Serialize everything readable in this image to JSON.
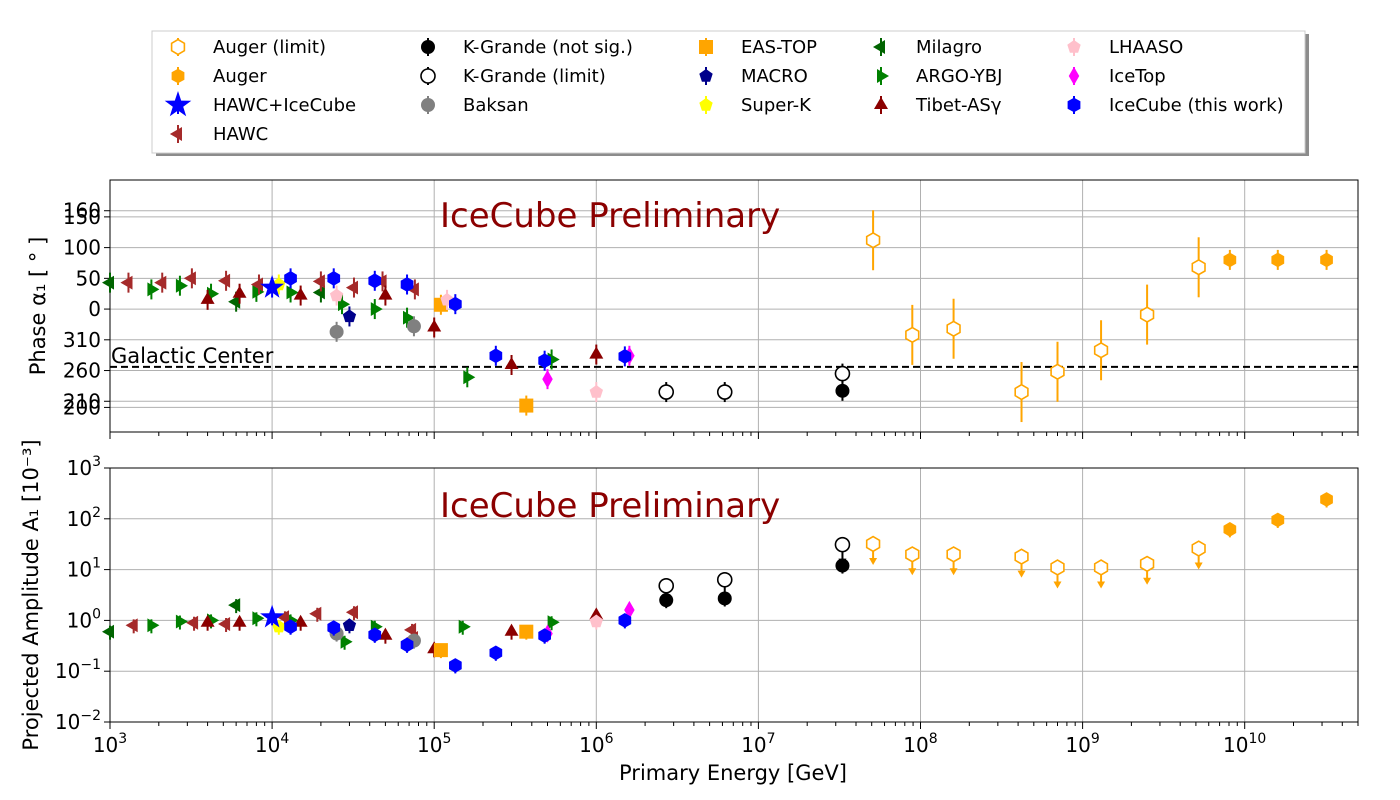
{
  "chart_data": [
    {
      "type": "scatter",
      "panel": "phase",
      "ylabel": "Phase α₁ [ ° ]",
      "xlabel": "",
      "xscale": "log",
      "xlim": [
        1000,
        50000000000
      ],
      "phase_ticks": [
        200,
        150,
        100,
        50,
        0,
        310,
        260,
        210,
        160
      ],
      "watermark": "IceCube Preliminary",
      "reference_line": {
        "label": "Galactic Center",
        "value": 266
      },
      "series": [
        {
          "name": "Milagro",
          "points": [
            [
              1000,
              43
            ],
            [
              6000,
              12
            ],
            [
              20000,
              27
            ]
          ]
        },
        {
          "name": "ARGO-YBJ",
          "points": [
            [
              1800,
              32
            ],
            [
              2700,
              38
            ],
            [
              4200,
              25
            ],
            [
              8000,
              28
            ],
            [
              13000,
              27
            ],
            [
              27000,
              8
            ],
            [
              43000,
              0
            ],
            [
              68000,
              -14
            ],
            [
              160000,
              249
            ],
            [
              530000,
              278
            ]
          ]
        },
        {
          "name": "HAWC",
          "points": [
            [
              1300,
              43
            ],
            [
              2100,
              43
            ],
            [
              3200,
              50
            ],
            [
              5200,
              46
            ],
            [
              8300,
              40
            ],
            [
              20000,
              45
            ],
            [
              32000,
              35
            ],
            [
              48000,
              45
            ],
            [
              76000,
              32
            ]
          ]
        },
        {
          "name": "Tibet-ASγ",
          "points": [
            [
              4000,
              15
            ],
            [
              6300,
              25
            ],
            [
              15000,
              22
            ],
            [
              50000,
              22
            ],
            [
              100000,
              -30
            ],
            [
              300000,
              269
            ],
            [
              1000000,
              286
            ]
          ]
        },
        {
          "name": "Baksan",
          "points": [
            [
              25000,
              -37
            ],
            [
              75000,
              -28
            ]
          ]
        },
        {
          "name": "MACRO",
          "points": [
            [
              30000,
              -12
            ]
          ]
        },
        {
          "name": "Super-K",
          "points": [
            [
              11000,
              40
            ]
          ]
        },
        {
          "name": "EAS-TOP",
          "points": [
            [
              110000,
              7
            ],
            [
              370000,
              203
            ]
          ]
        },
        {
          "name": "LHAASO",
          "points": [
            [
              25000,
              22
            ],
            [
              120000,
              15
            ],
            [
              1000000,
              225
            ]
          ]
        },
        {
          "name": "IceTop",
          "points": [
            [
              500000,
              246
            ],
            [
              1600000,
              284
            ]
          ]
        },
        {
          "name": "HAWC+IceCube",
          "points": [
            [
              10000,
              35
            ]
          ]
        },
        {
          "name": "IceCube (this work)",
          "points": [
            [
              13000,
              50
            ],
            [
              24000,
              50
            ],
            [
              43000,
              46
            ],
            [
              68000,
              40
            ],
            [
              135000,
              8
            ],
            [
              240000,
              284
            ],
            [
              480000,
              276
            ],
            [
              1500000,
              283
            ]
          ]
        },
        {
          "name": "K-Grande (limit)",
          "points": [
            [
              2700000,
              225
            ],
            [
              6200000,
              225
            ],
            [
              33000000,
              255
            ]
          ]
        },
        {
          "name": "K-Grande (not sig.)",
          "points": [
            [
              33000000,
              227
            ]
          ]
        },
        {
          "name": "Auger (limit)",
          "points": [
            [
              51000000,
              112
            ],
            [
              89000000,
              -42
            ],
            [
              160000000,
              -32
            ],
            [
              420000000,
              225
            ],
            [
              700000000,
              258
            ],
            [
              1300000000,
              -67
            ],
            [
              2500000000,
              -9
            ],
            [
              5200000000,
              68
            ]
          ]
        },
        {
          "name": "Auger",
          "points": [
            [
              8100000000,
              80
            ],
            [
              16000000000,
              80
            ],
            [
              32000000000,
              80
            ]
          ]
        }
      ]
    },
    {
      "type": "scatter",
      "panel": "amplitude",
      "ylabel": "Projected Amplitude A₁ [10⁻³]",
      "xlabel": "Primary Energy [GeV]",
      "xscale": "log",
      "yscale": "log",
      "xlim": [
        1000,
        50000000000
      ],
      "ylim": [
        0.01,
        1000
      ],
      "watermark": "IceCube Preliminary",
      "x_ticks": [
        {
          "base": "10",
          "exp": "3"
        },
        {
          "base": "10",
          "exp": "4"
        },
        {
          "base": "10",
          "exp": "5"
        },
        {
          "base": "10",
          "exp": "6"
        },
        {
          "base": "10",
          "exp": "7"
        },
        {
          "base": "10",
          "exp": "8"
        },
        {
          "base": "10",
          "exp": "9"
        },
        {
          "base": "10",
          "exp": "10"
        }
      ],
      "y_ticks": [
        {
          "base": "10",
          "exp": "−2"
        },
        {
          "base": "10",
          "exp": "−1"
        },
        {
          "base": "10",
          "exp": "0"
        },
        {
          "base": "10",
          "exp": "1"
        },
        {
          "base": "10",
          "exp": "2"
        },
        {
          "base": "10",
          "exp": "3"
        }
      ],
      "y_tick_labels": [
        "10⁻²",
        "10⁻¹",
        "10⁰",
        "10¹",
        "10²",
        "10³"
      ],
      "series": [
        {
          "name": "Milagro",
          "points": [
            [
              1000,
              0.6
            ],
            [
              6000,
              2.0
            ]
          ]
        },
        {
          "name": "ARGO-YBJ",
          "points": [
            [
              1800,
              0.8
            ],
            [
              2700,
              0.95
            ],
            [
              4200,
              1.0
            ],
            [
              8000,
              1.1
            ],
            [
              13000,
              1.0
            ],
            [
              28000,
              0.38
            ],
            [
              43000,
              0.75
            ],
            [
              150000,
              0.75
            ],
            [
              530000,
              0.92
            ]
          ]
        },
        {
          "name": "HAWC",
          "points": [
            [
              1400,
              0.8
            ],
            [
              3300,
              0.9
            ],
            [
              5200,
              0.85
            ],
            [
              12000,
              1.15
            ],
            [
              19000,
              1.35
            ],
            [
              32000,
              1.45
            ],
            [
              73000,
              0.65
            ],
            [
              75000,
              0.45
            ]
          ]
        },
        {
          "name": "Tibet-ASγ",
          "points": [
            [
              4000,
              0.9
            ],
            [
              6300,
              0.9
            ],
            [
              15000,
              0.9
            ],
            [
              50000,
              0.5
            ],
            [
              100000,
              0.27
            ],
            [
              300000,
              0.6
            ],
            [
              1000000,
              1.25
            ]
          ]
        },
        {
          "name": "Baksan",
          "points": [
            [
              25000,
              0.55
            ],
            [
              75000,
              0.4
            ]
          ]
        },
        {
          "name": "MACRO",
          "points": [
            [
              30000,
              0.8
            ]
          ]
        },
        {
          "name": "Super-K",
          "points": [
            [
              11000,
              0.75
            ]
          ]
        },
        {
          "name": "EAS-TOP",
          "points": [
            [
              110000,
              0.26
            ],
            [
              370000,
              0.6
            ]
          ]
        },
        {
          "name": "LHAASO",
          "points": [
            [
              1000000,
              0.95
            ]
          ]
        },
        {
          "name": "IceTop",
          "points": [
            [
              500000,
              0.55
            ],
            [
              1600000,
              1.6
            ]
          ]
        },
        {
          "name": "HAWC+IceCube",
          "points": [
            [
              10000,
              1.15
            ]
          ]
        },
        {
          "name": "IceCube (this work)",
          "points": [
            [
              13000,
              0.75
            ],
            [
              24000,
              0.72
            ],
            [
              43000,
              0.52
            ],
            [
              68000,
              0.33
            ],
            [
              135000,
              0.13
            ],
            [
              240000,
              0.23
            ],
            [
              480000,
              0.5
            ],
            [
              1500000,
              1.0
            ]
          ]
        },
        {
          "name": "K-Grande (limit)",
          "points": [
            [
              2700000,
              4.8
            ],
            [
              6200000,
              6.3
            ],
            [
              33000000,
              31
            ]
          ]
        },
        {
          "name": "K-Grande (not sig.)",
          "points": [
            [
              2700000,
              2.5
            ],
            [
              6200000,
              2.7
            ],
            [
              33000000,
              12
            ]
          ]
        },
        {
          "name": "Auger (limit)",
          "points": [
            [
              51000000,
              32
            ],
            [
              89000000,
              20
            ],
            [
              160000000,
              20
            ],
            [
              420000000,
              18
            ],
            [
              700000000,
              11
            ],
            [
              1300000000,
              11
            ],
            [
              2500000000,
              13
            ],
            [
              5200000000,
              26
            ]
          ]
        },
        {
          "name": "Auger",
          "points": [
            [
              8100000000,
              62
            ],
            [
              16000000000,
              95
            ],
            [
              32000000000,
              240
            ]
          ]
        }
      ]
    }
  ],
  "legend": {
    "location": "top-center",
    "entries": [
      {
        "label": "Auger (limit)",
        "color": "#ffa500",
        "marker": "hexagon-open"
      },
      {
        "label": "Auger",
        "color": "#ffa500",
        "marker": "hexagon"
      },
      {
        "label": "HAWC+IceCube",
        "color": "#0000ff",
        "marker": "star"
      },
      {
        "label": "HAWC",
        "color": "#a52a2a",
        "marker": "triangle-left"
      },
      {
        "label": "K-Grande (not sig.)",
        "color": "#000000",
        "marker": "circle"
      },
      {
        "label": "K-Grande (limit)",
        "color": "#000000",
        "marker": "circle-open"
      },
      {
        "label": "Baksan",
        "color": "#808080",
        "marker": "circle"
      },
      {
        "label": "EAS-TOP",
        "color": "#ffa500",
        "marker": "square"
      },
      {
        "label": "MACRO",
        "color": "#00008b",
        "marker": "pentagon"
      },
      {
        "label": "Super-K",
        "color": "#ffff00",
        "marker": "pentagon"
      },
      {
        "label": "Milagro",
        "color": "#006400",
        "marker": "triangle-left"
      },
      {
        "label": "ARGO-YBJ",
        "color": "#008000",
        "marker": "triangle-right"
      },
      {
        "label": "Tibet-ASγ",
        "color": "#8b0000",
        "marker": "triangle-up"
      },
      {
        "label": "LHAASO",
        "color": "#ffc0cb",
        "marker": "pentagon"
      },
      {
        "label": "IceTop",
        "color": "#ff00ff",
        "marker": "diamond"
      },
      {
        "label": "IceCube (this work)",
        "color": "#0000ff",
        "marker": "hexagon"
      }
    ]
  }
}
